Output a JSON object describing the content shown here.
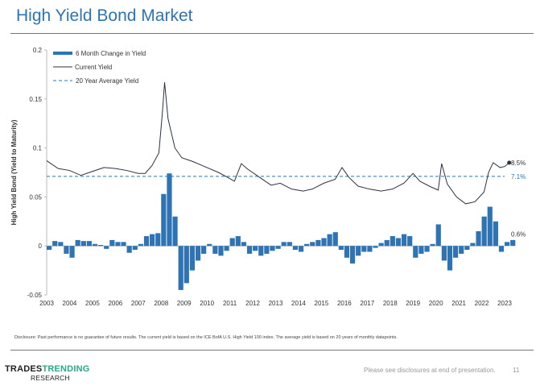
{
  "header": {
    "title": "High Yield Bond Market"
  },
  "footer": {
    "disclosure": "Disclosure: Past performance is no guarantee of future results. The current yield is based on the ICE BofA U.S. High Yield 100 index. The average yield is based on 20 years of monthly datapoints.",
    "logo_part1": "TRADES",
    "logo_part2": "TRENDING",
    "logo_part3": "RESEARCH",
    "note": "Please see disclosures at end of presentation.",
    "page": "11"
  },
  "chart_data": {
    "type": "bar+line",
    "ylabel": "High Yield Bond (Yield to Maturity)",
    "xlabel": "",
    "ylim": [
      -0.05,
      0.2
    ],
    "yticks": [
      "-0.05",
      "0",
      "0.05",
      "0.1",
      "0.15",
      "0.2"
    ],
    "ytick_values": [
      -0.05,
      0,
      0.05,
      0.1,
      0.15,
      0.2
    ],
    "xlim": [
      2003,
      2023
    ],
    "xticks": [
      "2003",
      "2004",
      "2005",
      "2006",
      "2007",
      "2008",
      "2009",
      "2010",
      "2011",
      "2012",
      "2013",
      "2014",
      "2015",
      "2016",
      "2017",
      "2018",
      "2019",
      "2020",
      "2021",
      "2022",
      "2023"
    ],
    "legend": [
      "6 Month Change in Yield",
      "Current Yield",
      "20 Year Average Yield"
    ],
    "legend_position": "top-left",
    "colors": {
      "bars": "#2e74b5",
      "line": "#2b3245",
      "avg": "#2e74b5"
    },
    "average": 0.071,
    "labels": {
      "current": "8.5%",
      "average": "7.1%",
      "change": "0.6%"
    },
    "yield": {
      "x": [
        2003,
        2003.5,
        2004,
        2004.5,
        2005,
        2005.5,
        2006,
        2006.5,
        2007,
        2007.3,
        2007.6,
        2007.9,
        2008.05,
        2008.15,
        2008.3,
        2008.6,
        2008.9,
        2009.4,
        2010,
        2010.5,
        2010.9,
        2011.2,
        2011.5,
        2011.8,
        2012.3,
        2012.8,
        2013.2,
        2013.7,
        2014.2,
        2014.6,
        2015.1,
        2015.6,
        2015.9,
        2016.2,
        2016.6,
        2017.1,
        2017.6,
        2018.1,
        2018.6,
        2019,
        2019.3,
        2019.8,
        2020.1,
        2020.25,
        2020.5,
        2020.9,
        2021.3,
        2021.7,
        2022.1,
        2022.3,
        2022.5,
        2022.8,
        2023,
        2023.2
      ],
      "y": [
        0.087,
        0.079,
        0.077,
        0.072,
        0.076,
        0.08,
        0.079,
        0.077,
        0.074,
        0.074,
        0.082,
        0.095,
        0.135,
        0.167,
        0.13,
        0.1,
        0.09,
        0.086,
        0.08,
        0.075,
        0.07,
        0.066,
        0.084,
        0.078,
        0.07,
        0.062,
        0.064,
        0.058,
        0.056,
        0.058,
        0.064,
        0.068,
        0.08,
        0.07,
        0.061,
        0.058,
        0.056,
        0.058,
        0.064,
        0.074,
        0.066,
        0.06,
        0.057,
        0.084,
        0.063,
        0.05,
        0.043,
        0.045,
        0.055,
        0.075,
        0.085,
        0.08,
        0.081,
        0.085
      ]
    },
    "change": {
      "start": 2003,
      "step": 0.25,
      "values": [
        -0.004,
        0.005,
        0.004,
        -0.008,
        -0.012,
        0.006,
        0.005,
        0.005,
        0.002,
        0.001,
        -0.003,
        0.006,
        0.004,
        0.004,
        -0.007,
        -0.004,
        0.002,
        0.01,
        0.012,
        0.013,
        0.053,
        0.074,
        0.03,
        -0.045,
        -0.038,
        -0.025,
        -0.015,
        -0.008,
        0.002,
        -0.008,
        -0.01,
        -0.005,
        0.008,
        0.01,
        0.004,
        -0.008,
        -0.005,
        -0.01,
        -0.008,
        -0.005,
        -0.003,
        0.004,
        0.004,
        -0.004,
        -0.006,
        0.002,
        0.004,
        0.006,
        0.008,
        0.012,
        0.014,
        -0.004,
        -0.012,
        -0.018,
        -0.01,
        -0.006,
        -0.006,
        -0.002,
        0.003,
        0.006,
        0.01,
        0.008,
        0.012,
        0.01,
        -0.012,
        -0.008,
        -0.006,
        0.002,
        0.022,
        -0.015,
        -0.025,
        -0.012,
        -0.008,
        -0.004,
        0.003,
        0.015,
        0.03,
        0.04,
        0.025,
        -0.006,
        0.004,
        0.006
      ]
    }
  }
}
